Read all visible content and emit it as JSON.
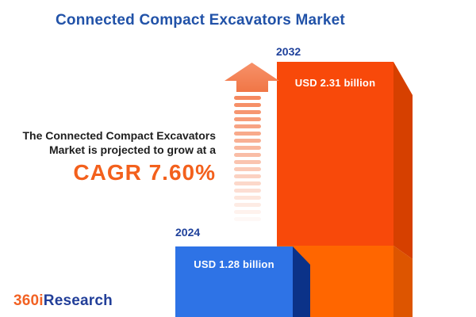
{
  "title": "Connected Compact Excavators Market",
  "annotation": {
    "line1": "The Connected Compact Excavators",
    "line2": "Market is projected to grow at a",
    "cagr": "CAGR 7.60%"
  },
  "bars": [
    {
      "year": "2024",
      "value_label": "USD 1.28 billion"
    },
    {
      "year": "2032",
      "value_label": "USD 2.31 billion"
    }
  ],
  "logo": {
    "prefix": "360i",
    "suffix": "Research"
  },
  "arrow": {
    "stripe_count": 19,
    "color_start": "#F5895F",
    "color_end": "#FFFFFF"
  },
  "colors": {
    "title_blue": "#2152A8",
    "year_label_blue": "#1F419B",
    "bar_2024_face": "#2E73E6",
    "bar_2024_side": "#0B3288",
    "bar_2032_face_top": "#F8490A",
    "bar_2032_face_bottom": "#FF6600",
    "bar_2032_side_top": "#D64000",
    "bar_2032_side_bottom": "#DD5500",
    "cagr_orange": "#F3601C",
    "arrow_salmon": "#F5895F",
    "logo_orange": "#F26224",
    "logo_navy": "#223F99",
    "background": "#FFFFFF"
  },
  "chart_data": {
    "type": "bar",
    "title": "Connected Compact Excavators Market",
    "categories": [
      "2024",
      "2032"
    ],
    "values": [
      1.28,
      2.31
    ],
    "unit": "USD billion",
    "value_labels": [
      "USD 1.28 billion",
      "USD 2.31 billion"
    ],
    "cagr_percent": 7.6,
    "bar_colors": [
      "#2E73E6",
      "#F8490A"
    ],
    "annotation": "The Connected Compact Excavators Market is projected to grow at a CAGR 7.60%",
    "legend": "none",
    "axes": "none",
    "style": "3d-infographic-bars"
  }
}
